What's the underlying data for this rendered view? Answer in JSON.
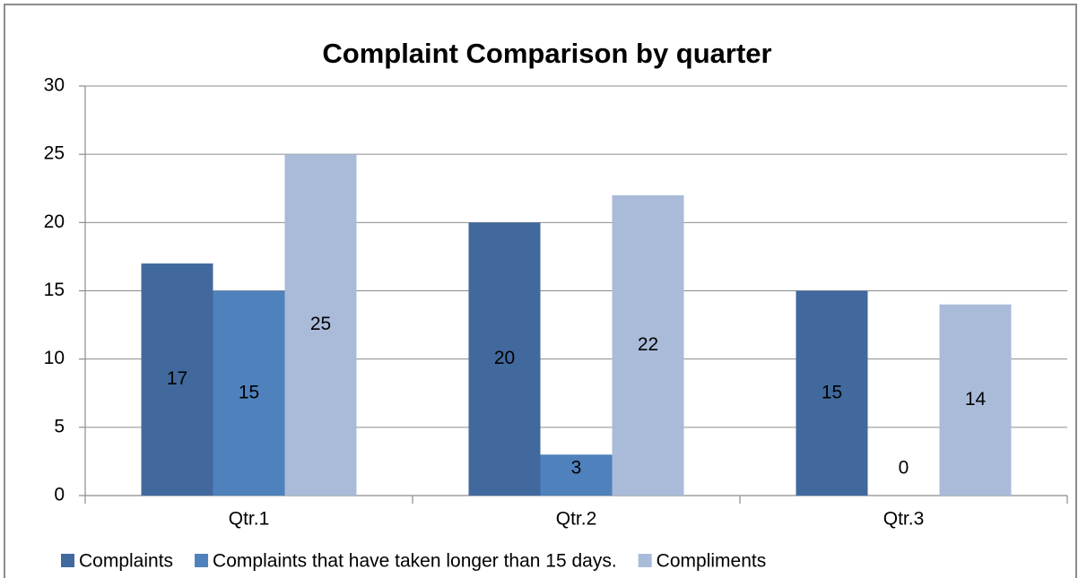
{
  "chart_data": {
    "type": "bar",
    "title": "Complaint Comparison by quarter",
    "categories": [
      "Qtr.1",
      "Qtr.2",
      "Qtr.3"
    ],
    "series": [
      {
        "name": "Complaints",
        "color": "#41699d",
        "values": [
          17,
          20,
          15
        ]
      },
      {
        "name": "Complaints that have taken longer than 15 days.",
        "color": "#4f81bd",
        "values": [
          15,
          3,
          0
        ]
      },
      {
        "name": "Compliments",
        "color": "#a9bbd9",
        "values": [
          25,
          22,
          14
        ]
      }
    ],
    "ylim": [
      0,
      30
    ],
    "yticks": [
      0,
      5,
      10,
      15,
      20,
      25,
      30
    ],
    "grid": true,
    "legend": "bottom"
  }
}
